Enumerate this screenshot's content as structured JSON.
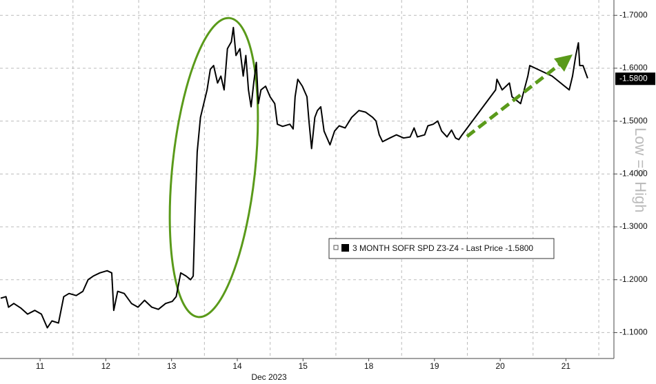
{
  "chart_data": {
    "type": "line",
    "x_label": "Dec 2023",
    "y_label": "Low => High",
    "xlim": [
      -0.11,
      9.23
    ],
    "xticks": [
      {
        "value": 0.5,
        "label": "11"
      },
      {
        "value": 1.5,
        "label": "12"
      },
      {
        "value": 2.5,
        "label": "13"
      },
      {
        "value": 3.5,
        "label": "14"
      },
      {
        "value": 4.5,
        "label": "15"
      },
      {
        "value": 5.5,
        "label": "18"
      },
      {
        "value": 6.5,
        "label": "19"
      },
      {
        "value": 7.5,
        "label": "20"
      },
      {
        "value": 8.5,
        "label": "21"
      }
    ],
    "ylim": [
      -1.051,
      -1.729
    ],
    "yticks": [
      {
        "value": -1.7,
        "label": "-1.7000"
      },
      {
        "value": -1.6,
        "label": "-1.6000"
      },
      {
        "value": -1.5,
        "label": "-1.5000"
      },
      {
        "value": -1.4,
        "label": "-1.4000"
      },
      {
        "value": -1.3,
        "label": "-1.3000"
      },
      {
        "value": -1.2,
        "label": "-1.2000"
      },
      {
        "value": -1.1,
        "label": "-1.1000"
      }
    ],
    "grid": true,
    "last_value": {
      "value": -1.58,
      "label": "-1.5800"
    },
    "series": [
      {
        "name": "3 MONTH SOFR SPD Z3-Z4 - Last Price",
        "color": "#000000",
        "x": [
          -0.1,
          -0.02,
          0.02,
          0.1,
          0.21,
          0.31,
          0.42,
          0.52,
          0.61,
          0.68,
          0.78,
          0.86,
          0.94,
          1.05,
          1.15,
          1.23,
          1.31,
          1.41,
          1.52,
          1.59,
          1.62,
          1.68,
          1.78,
          1.89,
          1.99,
          2.09,
          2.2,
          2.3,
          2.41,
          2.51,
          2.57,
          2.64,
          2.72,
          2.79,
          2.83,
          2.86,
          2.89,
          2.94,
          2.99,
          3.04,
          3.09,
          3.14,
          3.2,
          3.25,
          3.3,
          3.35,
          3.41,
          3.44,
          3.48,
          3.54,
          3.59,
          3.63,
          3.67,
          3.71,
          3.75,
          3.79,
          3.82,
          3.86,
          3.93,
          4.0,
          4.07,
          4.11,
          4.19,
          4.3,
          4.35,
          4.38,
          4.42,
          4.49,
          4.56,
          4.59,
          4.63,
          4.68,
          4.72,
          4.77,
          4.82,
          4.91,
          4.98,
          5.05,
          5.14,
          5.24,
          5.35,
          5.45,
          5.56,
          5.61,
          5.66,
          5.71,
          5.82,
          5.92,
          6.03,
          6.13,
          6.19,
          6.24,
          6.35,
          6.4,
          6.48,
          6.55,
          6.61,
          6.69,
          6.76,
          6.82,
          6.87,
          6.92,
          7.43,
          7.45,
          7.53,
          7.64,
          7.68,
          7.81,
          7.92,
          7.95,
          8.29,
          8.55,
          8.6,
          8.65,
          8.69,
          8.71,
          8.76,
          8.83
        ],
        "values": [
          -1.165,
          -1.168,
          -1.148,
          -1.155,
          -1.146,
          -1.135,
          -1.142,
          -1.135,
          -1.109,
          -1.122,
          -1.118,
          -1.168,
          -1.174,
          -1.17,
          -1.178,
          -1.2,
          -1.207,
          -1.213,
          -1.217,
          -1.213,
          -1.142,
          -1.178,
          -1.174,
          -1.155,
          -1.148,
          -1.161,
          -1.148,
          -1.144,
          -1.155,
          -1.159,
          -1.168,
          -1.213,
          -1.207,
          -1.2,
          -1.207,
          -1.337,
          -1.442,
          -1.507,
          -1.533,
          -1.559,
          -1.598,
          -1.605,
          -1.572,
          -1.585,
          -1.559,
          -1.637,
          -1.65,
          -1.677,
          -1.624,
          -1.637,
          -1.585,
          -1.624,
          -1.559,
          -1.527,
          -1.572,
          -1.611,
          -1.533,
          -1.559,
          -1.566,
          -1.546,
          -1.533,
          -1.494,
          -1.49,
          -1.494,
          -1.485,
          -1.546,
          -1.579,
          -1.566,
          -1.546,
          -1.5,
          -1.448,
          -1.507,
          -1.52,
          -1.527,
          -1.481,
          -1.455,
          -1.481,
          -1.491,
          -1.487,
          -1.507,
          -1.52,
          -1.517,
          -1.507,
          -1.5,
          -1.474,
          -1.461,
          -1.468,
          -1.474,
          -1.468,
          -1.47,
          -1.487,
          -1.47,
          -1.474,
          -1.491,
          -1.494,
          -1.5,
          -1.481,
          -1.47,
          -1.483,
          -1.468,
          -1.465,
          -1.474,
          -1.559,
          -1.579,
          -1.559,
          -1.572,
          -1.546,
          -1.533,
          -1.585,
          -1.605,
          -1.585,
          -1.559,
          -1.585,
          -1.624,
          -1.648,
          -1.605,
          -1.605,
          -1.581
        ]
      }
    ]
  }
}
